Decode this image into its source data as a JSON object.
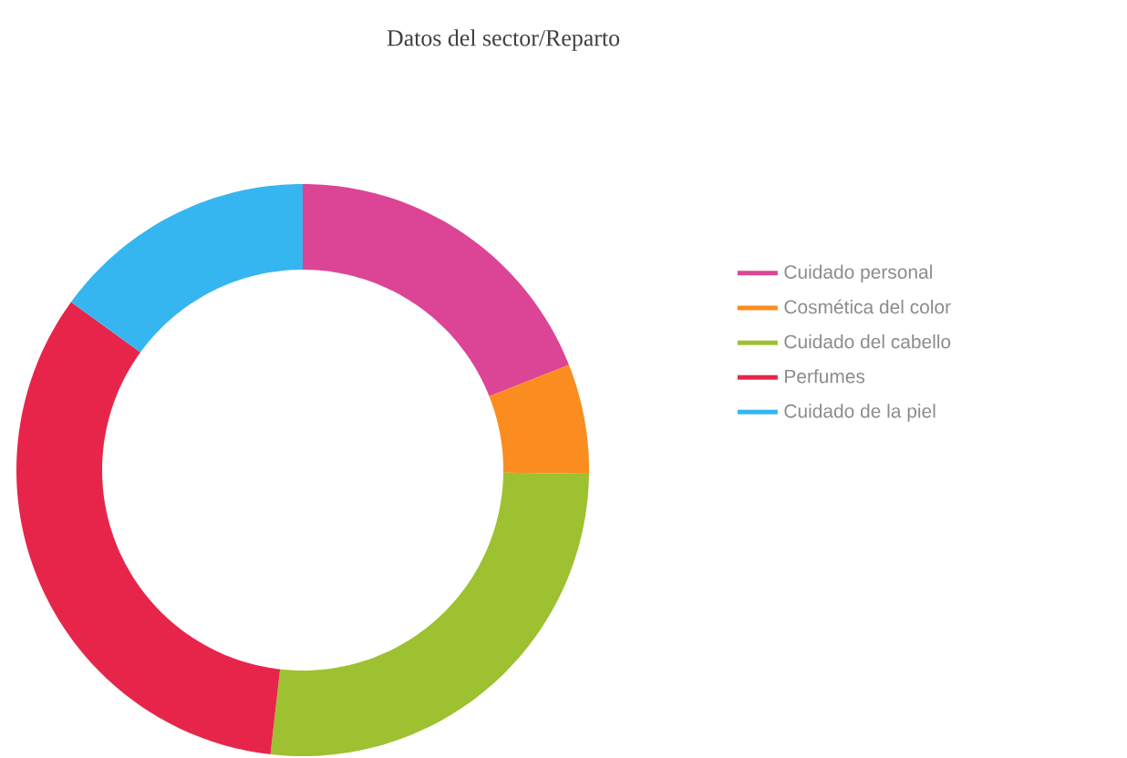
{
  "chart_data": {
    "type": "donut",
    "title": "Datos del sector/Reparto",
    "categories": [
      "Cuidado personal",
      "Cosmética del color",
      "Cuidado del cabello",
      "Perfumes",
      "Cuidado de la piel"
    ],
    "values": [
      19.0,
      6.2,
      26.6,
      33.2,
      15.0
    ],
    "colors": [
      "#dc4596",
      "#fb8c1f",
      "#9dc130",
      "#e7254a",
      "#35b6f0"
    ],
    "legend": "right"
  }
}
